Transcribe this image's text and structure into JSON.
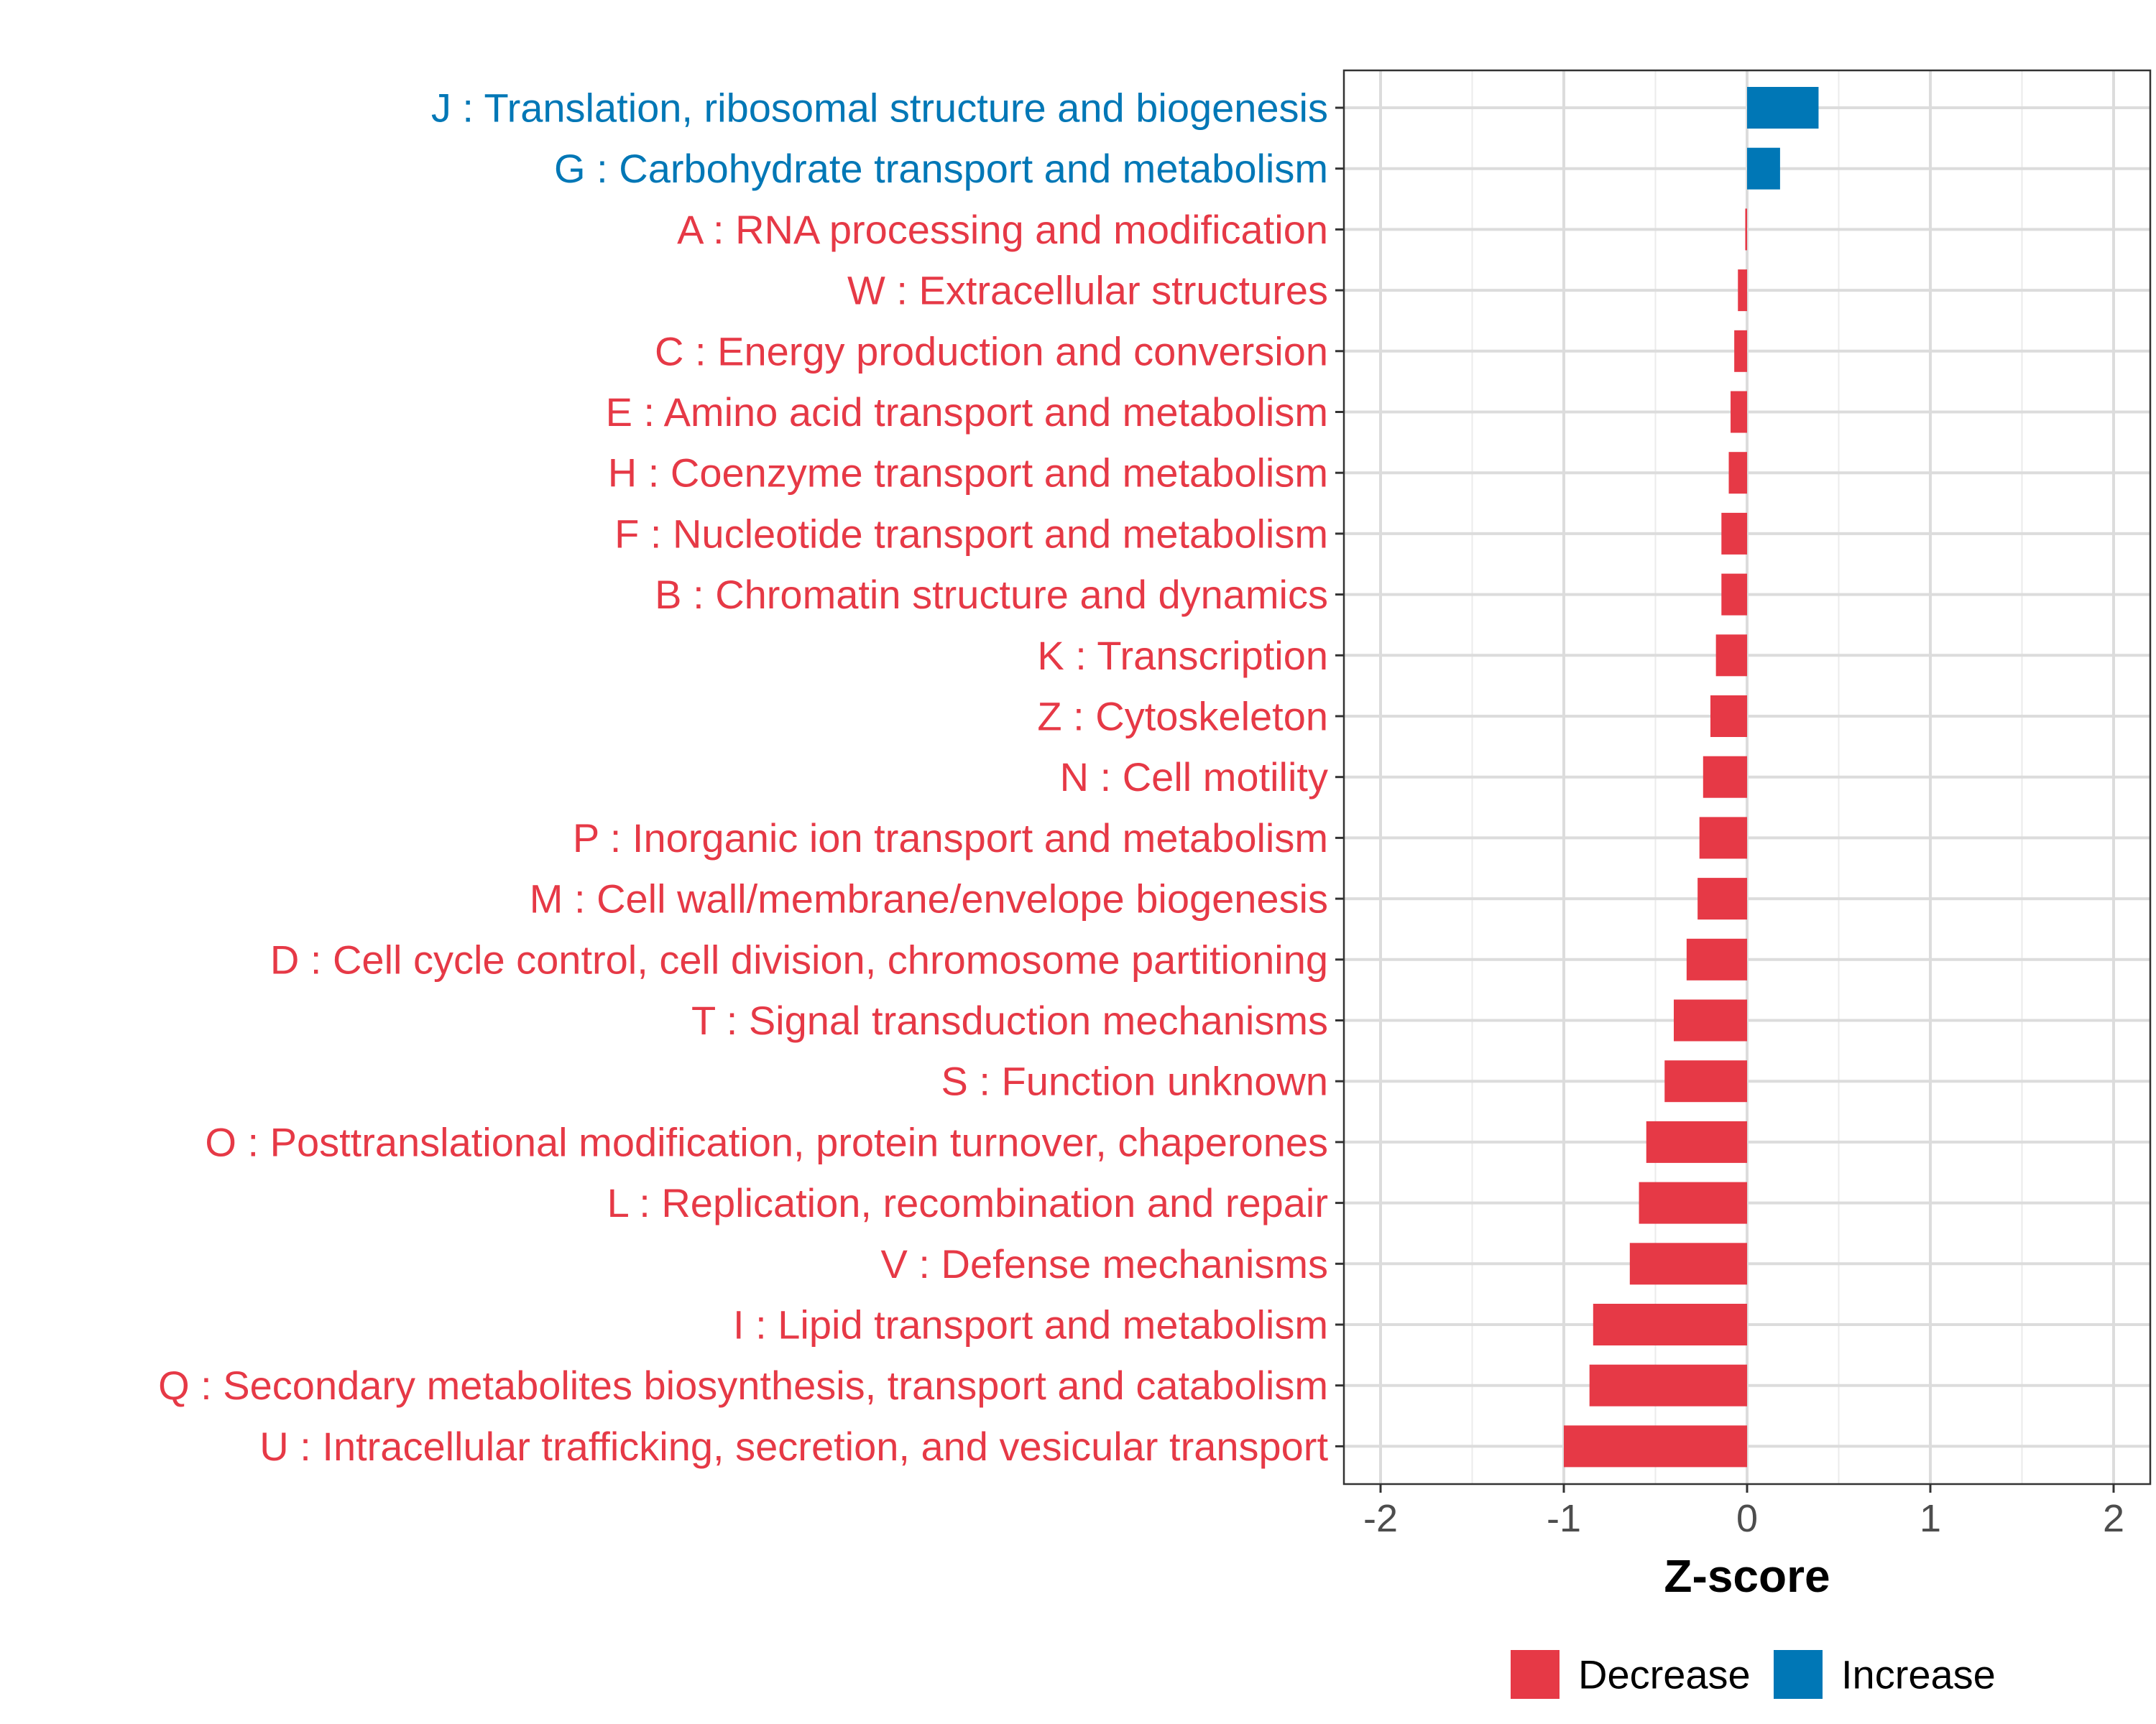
{
  "chart_data": {
    "type": "bar",
    "orientation": "horizontal",
    "title": "",
    "xlabel": "Z-score",
    "ylabel": "",
    "xlim": [
      -2.2,
      2.2
    ],
    "xticks": [
      -2,
      -1,
      0,
      1,
      2
    ],
    "xtick_labels": [
      "-2",
      "-1",
      "0",
      "1",
      "2"
    ],
    "grid": true,
    "legend_position": "bottom",
    "colors": {
      "Decrease": "#e63946",
      "Increase": "#0077b6"
    },
    "legend": [
      {
        "key": "Decrease",
        "label": "Decrease"
      },
      {
        "key": "Increase",
        "label": "Increase"
      }
    ],
    "categories": [
      "J : Translation, ribosomal structure and biogenesis",
      "G : Carbohydrate transport and metabolism",
      "A : RNA processing and modification",
      "W : Extracellular structures",
      "C : Energy production and conversion",
      "E : Amino acid transport and metabolism",
      "H : Coenzyme transport and metabolism",
      "F : Nucleotide transport and metabolism",
      "B : Chromatin structure and dynamics",
      "K : Transcription",
      "Z : Cytoskeleton",
      "N : Cell motility",
      "P : Inorganic ion transport and metabolism",
      "M : Cell wall/membrane/envelope biogenesis",
      "D : Cell cycle control, cell division, chromosome partitioning",
      "T : Signal transduction mechanisms",
      "S : Function unknown",
      "O : Posttranslational modification, protein turnover, chaperones",
      "L : Replication, recombination and repair",
      "V : Defense mechanisms",
      "I : Lipid transport and metabolism",
      "Q : Secondary metabolites biosynthesis, transport and catabolism",
      "U : Intracellular trafficking, secretion, and vesicular transport"
    ],
    "values": [
      0.39,
      0.18,
      -0.01,
      -0.05,
      -0.07,
      -0.09,
      -0.1,
      -0.14,
      -0.14,
      -0.17,
      -0.2,
      -0.24,
      -0.26,
      -0.27,
      -0.33,
      -0.4,
      -0.45,
      -0.55,
      -0.59,
      -0.64,
      -0.84,
      -0.86,
      -1.0
    ],
    "groups": [
      "Increase",
      "Increase",
      "Decrease",
      "Decrease",
      "Decrease",
      "Decrease",
      "Decrease",
      "Decrease",
      "Decrease",
      "Decrease",
      "Decrease",
      "Decrease",
      "Decrease",
      "Decrease",
      "Decrease",
      "Decrease",
      "Decrease",
      "Decrease",
      "Decrease",
      "Decrease",
      "Decrease",
      "Decrease",
      "Decrease"
    ]
  }
}
